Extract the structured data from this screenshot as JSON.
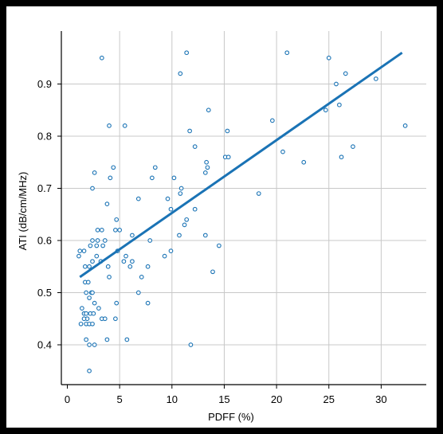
{
  "chart_data": {
    "type": "scatter",
    "title": "",
    "xlabel": "PDFF (%)",
    "ylabel": "ATI (dB/cm/MHz)",
    "xlim": [
      0,
      35
    ],
    "ylim": [
      0.33,
      1.0
    ],
    "grid": true,
    "x_ticks": [
      0,
      5,
      10,
      15,
      20,
      25,
      30
    ],
    "y_ticks": [
      0.4,
      0.5,
      0.6,
      0.7,
      0.8,
      0.9
    ],
    "colors": {
      "points": "#1a73b5",
      "regression": "#1a73b5",
      "grid": "#c8c8c8"
    },
    "regression": {
      "x": [
        1.2,
        32.0
      ],
      "y": [
        0.53,
        0.96
      ]
    },
    "points": [
      {
        "x": 3.3,
        "y": 0.95
      },
      {
        "x": 11.4,
        "y": 0.96
      },
      {
        "x": 10.8,
        "y": 0.92
      },
      {
        "x": 21.0,
        "y": 0.96
      },
      {
        "x": 25.0,
        "y": 0.95
      },
      {
        "x": 26.6,
        "y": 0.92
      },
      {
        "x": 25.7,
        "y": 0.9
      },
      {
        "x": 29.5,
        "y": 0.91
      },
      {
        "x": 24.7,
        "y": 0.85
      },
      {
        "x": 26.0,
        "y": 0.86
      },
      {
        "x": 32.3,
        "y": 0.82
      },
      {
        "x": 4.0,
        "y": 0.82
      },
      {
        "x": 5.5,
        "y": 0.82
      },
      {
        "x": 13.5,
        "y": 0.85
      },
      {
        "x": 19.6,
        "y": 0.83
      },
      {
        "x": 15.3,
        "y": 0.81
      },
      {
        "x": 11.7,
        "y": 0.81
      },
      {
        "x": 12.2,
        "y": 0.78
      },
      {
        "x": 20.6,
        "y": 0.77
      },
      {
        "x": 27.3,
        "y": 0.78
      },
      {
        "x": 26.2,
        "y": 0.76
      },
      {
        "x": 22.6,
        "y": 0.75
      },
      {
        "x": 15.1,
        "y": 0.76
      },
      {
        "x": 15.4,
        "y": 0.76
      },
      {
        "x": 8.1,
        "y": 0.72
      },
      {
        "x": 8.4,
        "y": 0.74
      },
      {
        "x": 10.2,
        "y": 0.72
      },
      {
        "x": 13.3,
        "y": 0.75
      },
      {
        "x": 13.4,
        "y": 0.74
      },
      {
        "x": 13.2,
        "y": 0.73
      },
      {
        "x": 2.6,
        "y": 0.73
      },
      {
        "x": 4.4,
        "y": 0.74
      },
      {
        "x": 4.1,
        "y": 0.72
      },
      {
        "x": 2.4,
        "y": 0.7
      },
      {
        "x": 10.9,
        "y": 0.7
      },
      {
        "x": 10.8,
        "y": 0.69
      },
      {
        "x": 9.6,
        "y": 0.68
      },
      {
        "x": 6.8,
        "y": 0.68
      },
      {
        "x": 18.3,
        "y": 0.69
      },
      {
        "x": 3.8,
        "y": 0.67
      },
      {
        "x": 9.9,
        "y": 0.66
      },
      {
        "x": 12.2,
        "y": 0.66
      },
      {
        "x": 11.4,
        "y": 0.64
      },
      {
        "x": 11.2,
        "y": 0.63
      },
      {
        "x": 4.7,
        "y": 0.64
      },
      {
        "x": 5.0,
        "y": 0.62
      },
      {
        "x": 4.6,
        "y": 0.62
      },
      {
        "x": 6.2,
        "y": 0.61
      },
      {
        "x": 13.2,
        "y": 0.61
      },
      {
        "x": 10.7,
        "y": 0.61
      },
      {
        "x": 7.9,
        "y": 0.6
      },
      {
        "x": 14.5,
        "y": 0.59
      },
      {
        "x": 2.9,
        "y": 0.62
      },
      {
        "x": 3.3,
        "y": 0.62
      },
      {
        "x": 2.4,
        "y": 0.6
      },
      {
        "x": 2.9,
        "y": 0.6
      },
      {
        "x": 3.6,
        "y": 0.6
      },
      {
        "x": 2.8,
        "y": 0.59
      },
      {
        "x": 3.4,
        "y": 0.59
      },
      {
        "x": 2.2,
        "y": 0.59
      },
      {
        "x": 1.2,
        "y": 0.58
      },
      {
        "x": 1.6,
        "y": 0.58
      },
      {
        "x": 4.8,
        "y": 0.58
      },
      {
        "x": 1.1,
        "y": 0.57
      },
      {
        "x": 2.8,
        "y": 0.57
      },
      {
        "x": 2.4,
        "y": 0.56
      },
      {
        "x": 3.2,
        "y": 0.56
      },
      {
        "x": 5.4,
        "y": 0.56
      },
      {
        "x": 5.6,
        "y": 0.57
      },
      {
        "x": 6.0,
        "y": 0.55
      },
      {
        "x": 6.2,
        "y": 0.56
      },
      {
        "x": 9.9,
        "y": 0.58
      },
      {
        "x": 9.3,
        "y": 0.57
      },
      {
        "x": 1.7,
        "y": 0.55
      },
      {
        "x": 2.1,
        "y": 0.55
      },
      {
        "x": 3.9,
        "y": 0.55
      },
      {
        "x": 7.7,
        "y": 0.55
      },
      {
        "x": 13.9,
        "y": 0.54
      },
      {
        "x": 4.0,
        "y": 0.53
      },
      {
        "x": 7.1,
        "y": 0.53
      },
      {
        "x": 1.7,
        "y": 0.52
      },
      {
        "x": 2.0,
        "y": 0.52
      },
      {
        "x": 1.8,
        "y": 0.5
      },
      {
        "x": 2.1,
        "y": 0.49
      },
      {
        "x": 2.3,
        "y": 0.5
      },
      {
        "x": 2.4,
        "y": 0.5
      },
      {
        "x": 6.8,
        "y": 0.5
      },
      {
        "x": 2.6,
        "y": 0.48
      },
      {
        "x": 3.0,
        "y": 0.47
      },
      {
        "x": 1.4,
        "y": 0.47
      },
      {
        "x": 4.7,
        "y": 0.48
      },
      {
        "x": 7.7,
        "y": 0.48
      },
      {
        "x": 1.6,
        "y": 0.46
      },
      {
        "x": 1.8,
        "y": 0.46
      },
      {
        "x": 2.2,
        "y": 0.46
      },
      {
        "x": 2.5,
        "y": 0.46
      },
      {
        "x": 1.9,
        "y": 0.45
      },
      {
        "x": 1.6,
        "y": 0.45
      },
      {
        "x": 1.3,
        "y": 0.44
      },
      {
        "x": 1.8,
        "y": 0.44
      },
      {
        "x": 2.1,
        "y": 0.44
      },
      {
        "x": 2.4,
        "y": 0.44
      },
      {
        "x": 3.3,
        "y": 0.45
      },
      {
        "x": 3.6,
        "y": 0.45
      },
      {
        "x": 4.6,
        "y": 0.45
      },
      {
        "x": 1.8,
        "y": 0.41
      },
      {
        "x": 2.1,
        "y": 0.4
      },
      {
        "x": 2.6,
        "y": 0.4
      },
      {
        "x": 3.8,
        "y": 0.41
      },
      {
        "x": 5.7,
        "y": 0.41
      },
      {
        "x": 11.8,
        "y": 0.4
      },
      {
        "x": 2.1,
        "y": 0.35
      }
    ]
  }
}
